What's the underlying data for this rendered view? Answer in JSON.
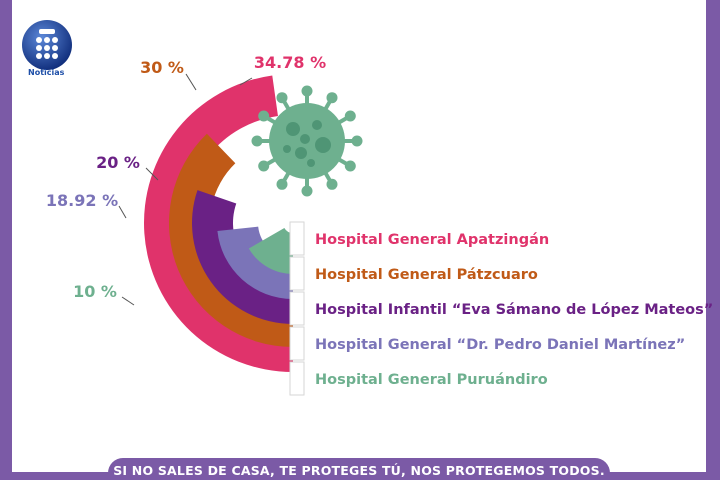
{
  "brand": {
    "logo_text": "Noticias"
  },
  "chart_data": {
    "type": "pie",
    "title": "",
    "series": [
      {
        "name": "Hospital General Apatzingán",
        "value": 34.78,
        "label": "34.78 %",
        "color": "#e0336b"
      },
      {
        "name": "Hospital General Pátzcuaro",
        "value": 30,
        "label": "30 %",
        "color": "#c05a17"
      },
      {
        "name": "Hospital Infantil “Eva Sámano de López Mateos”",
        "value": 20,
        "label": "20 %",
        "color": "#6a2185"
      },
      {
        "name": "Hospital General “Dr. Pedro Daniel Martínez”",
        "value": 18.92,
        "label": "18.92 %",
        "color": "#7b74b8"
      },
      {
        "name": "Hospital General Puruándiro",
        "value": 10,
        "label": "10 %",
        "color": "#6eb08f"
      }
    ],
    "legend_position": "right"
  },
  "footer": {
    "text": "SI NO SALES DE CASA, TE PROTEGES TÚ, NOS PROTEGEMOS TODOS."
  },
  "colors": {
    "frame": "#7b5aa6",
    "virus": "#6eb08f"
  },
  "icons": [
    "virus-icon",
    "logo-icon"
  ]
}
